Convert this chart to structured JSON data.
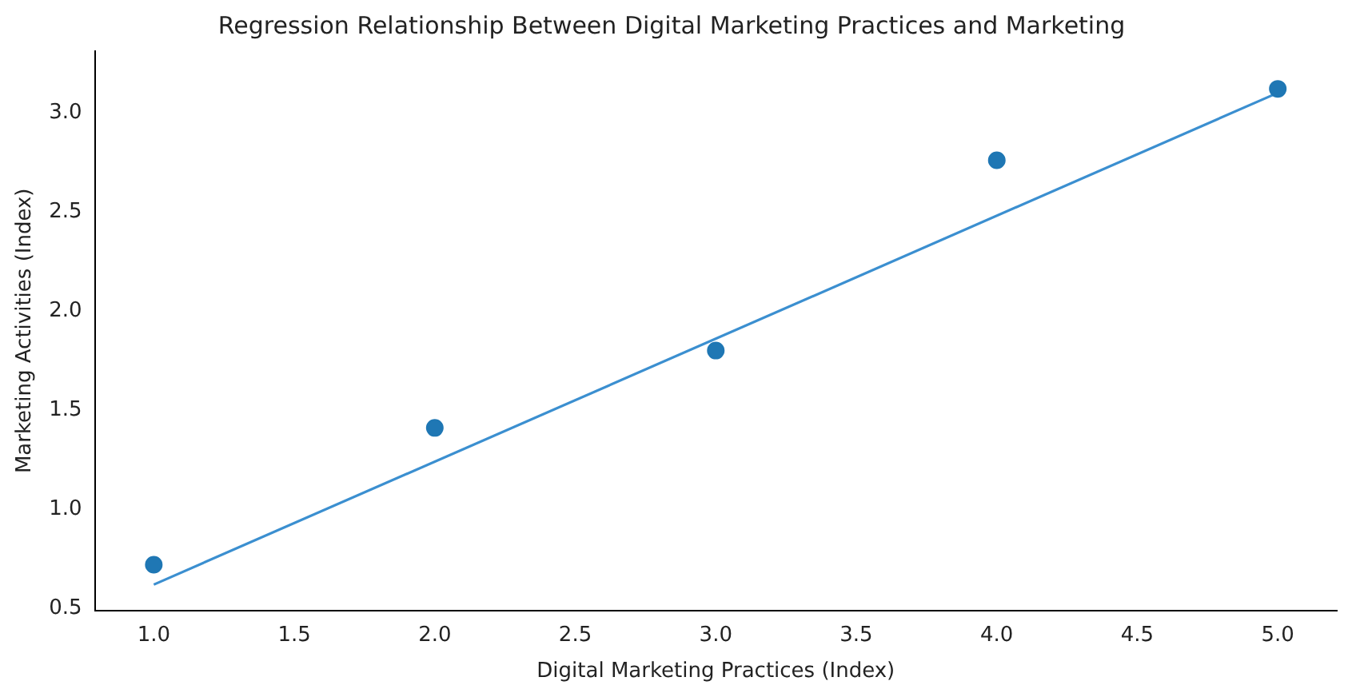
{
  "chart_data": {
    "type": "scatter",
    "title": "Regression Relationship Between Digital Marketing Practices and Marketing",
    "xlabel": "Digital Marketing Practices (Index)",
    "ylabel": "Marketing Activities (Index)",
    "x": [
      1,
      2,
      3,
      4,
      5
    ],
    "series": [
      {
        "color": "#1f77b4",
        "marker": "circle",
        "values": [
          0.72,
          1.41,
          1.8,
          2.76,
          3.12
        ]
      },
      {
        "type": "line",
        "color": "#3b8fd0",
        "marker": "none",
        "x": [
          1,
          5
        ],
        "values": [
          0.62,
          3.1
        ]
      }
    ],
    "xlim": [
      0.79,
      5.21
    ],
    "ylim": [
      0.49,
      3.31
    ],
    "xticks": [
      {
        "value": 1,
        "label": "1.0"
      },
      {
        "value": 1.5,
        "label": "1.5"
      },
      {
        "value": 2,
        "label": "2.0"
      },
      {
        "value": 2.5,
        "label": "2.5"
      },
      {
        "value": 3,
        "label": "3.0"
      },
      {
        "value": 3.5,
        "label": "3.5"
      },
      {
        "value": 4,
        "label": "4.0"
      },
      {
        "value": 4.5,
        "label": "4.5"
      },
      {
        "value": 5,
        "label": "5.0"
      }
    ],
    "yticks": [
      {
        "value": 0.5,
        "label": "0.5"
      },
      {
        "value": 1,
        "label": "1.0"
      },
      {
        "value": 1.5,
        "label": "1.5"
      },
      {
        "value": 2,
        "label": "2.0"
      },
      {
        "value": 2.5,
        "label": "2.5"
      },
      {
        "value": 3,
        "label": "3.0"
      }
    ],
    "grid": false,
    "legend": false
  }
}
